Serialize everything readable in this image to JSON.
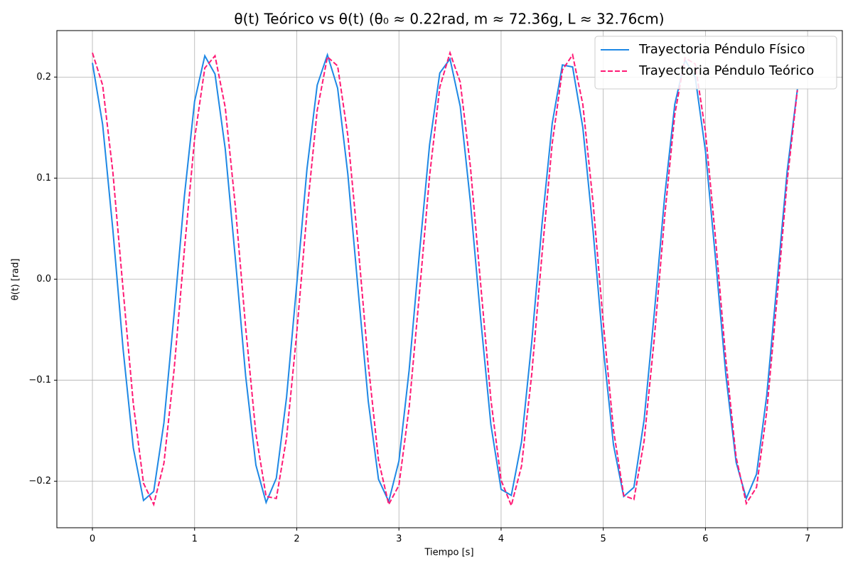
{
  "chart_data": {
    "type": "line",
    "title": "θ(t) Teórico vs θ(t) (θ₀ ≈ 0.22rad, m ≈ 72.36g, L ≈ 32.76cm)",
    "x_label": "Tiempo [s]",
    "y_label": "θ(t) [rad]",
    "x": [
      0,
      0.1,
      0.2,
      0.3,
      0.4,
      0.5,
      0.6,
      0.7,
      0.8,
      0.9,
      1.0,
      1.1,
      1.2,
      1.3,
      1.4,
      1.5,
      1.6,
      1.7,
      1.8,
      1.9,
      2.0,
      2.1,
      2.2,
      2.3,
      2.4,
      2.5,
      2.6,
      2.7,
      2.8,
      2.9,
      3.0,
      3.1,
      3.2,
      3.3,
      3.4,
      3.5,
      3.6,
      3.7,
      3.8,
      3.9,
      4.0,
      4.1,
      4.2,
      4.3,
      4.4,
      4.5,
      4.6,
      4.7,
      4.8,
      4.9,
      5.0,
      5.1,
      5.2,
      5.3,
      5.4,
      5.5,
      5.6,
      5.7,
      5.8,
      5.9,
      6.0,
      6.1,
      6.2,
      6.3,
      6.4,
      6.5,
      6.6,
      6.7,
      6.8,
      6.9
    ],
    "series": [
      {
        "name": "Trayectoria Péndulo Físico",
        "color": "#1e88e5",
        "linestyle": "solid",
        "values": [
          0.214,
          0.153,
          0.049,
          -0.069,
          -0.167,
          -0.219,
          -0.21,
          -0.142,
          -0.034,
          0.082,
          0.176,
          0.221,
          0.203,
          0.129,
          0.019,
          -0.096,
          -0.184,
          -0.221,
          -0.197,
          -0.117,
          -0.005,
          0.109,
          0.192,
          0.222,
          0.189,
          0.104,
          -0.01,
          -0.121,
          -0.198,
          -0.22,
          -0.18,
          -0.09,
          0.025,
          0.133,
          0.204,
          0.218,
          0.171,
          0.076,
          -0.039,
          -0.144,
          -0.208,
          -0.214,
          -0.161,
          -0.062,
          0.054,
          0.154,
          0.212,
          0.21,
          0.15,
          0.048,
          -0.068,
          -0.164,
          -0.215,
          -0.206,
          -0.139,
          -0.033,
          0.081,
          0.173,
          0.217,
          0.2,
          0.127,
          0.019,
          -0.095,
          -0.181,
          -0.217,
          -0.193,
          -0.115,
          -0.004,
          0.107,
          0.188
        ]
      },
      {
        "name": "Trayectoria Péndulo Teórico",
        "color": "#ff1a75",
        "linestyle": "dashed",
        "values": [
          0.224,
          0.192,
          0.106,
          -0.01,
          -0.123,
          -0.202,
          -0.223,
          -0.182,
          -0.089,
          0.029,
          0.139,
          0.209,
          0.221,
          0.17,
          0.071,
          -0.048,
          -0.153,
          -0.215,
          -0.217,
          -0.157,
          -0.053,
          0.066,
          0.167,
          0.22,
          0.211,
          0.142,
          0.034,
          -0.084,
          -0.179,
          -0.223,
          -0.204,
          -0.127,
          -0.015,
          0.102,
          0.19,
          0.224,
          0.195,
          0.111,
          -0.005,
          -0.119,
          -0.199,
          -0.224,
          -0.185,
          -0.094,
          0.024,
          0.134,
          0.207,
          0.222,
          0.173,
          0.076,
          -0.043,
          -0.149,
          -0.214,
          -0.218,
          -0.16,
          -0.058,
          0.061,
          0.163,
          0.219,
          0.213,
          0.146,
          0.039,
          -0.08,
          -0.176,
          -0.222,
          -0.206,
          -0.131,
          -0.02,
          0.097,
          0.187
        ]
      }
    ],
    "xlim": [
      -0.348,
      7.34
    ],
    "ylim": [
      -0.246,
      0.246
    ],
    "xticks": [
      0,
      1,
      2,
      3,
      4,
      5,
      6,
      7
    ],
    "yticks": [
      {
        "value": -0.2,
        "label": "−0.2"
      },
      {
        "value": -0.1,
        "label": "−0.1"
      },
      {
        "value": 0,
        "label": "0.0"
      },
      0.1,
      0.2
    ],
    "grid": true,
    "legend": "upper right"
  }
}
